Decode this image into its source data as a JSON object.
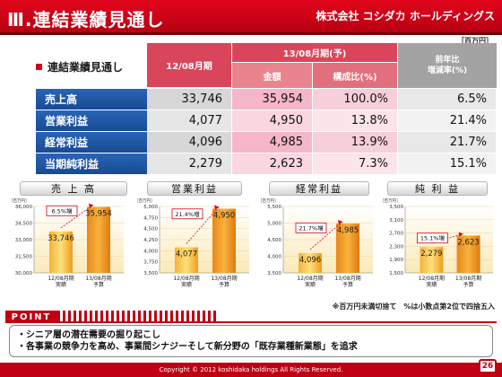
{
  "header": {
    "title": "Ⅲ.連結業績見通し",
    "company": "株式会社 コシダカ ホールディングス"
  },
  "unit_label": "［百万円］",
  "table": {
    "section_label": "連結業績見通し",
    "col_actual": "12/08月期",
    "col_forecast_group": "13/08月期(予)",
    "col_amount": "金額",
    "col_ratio": "構成比(%)",
    "col_yoy": "前年比\n増減率(%)",
    "rows": [
      {
        "label": "売上高",
        "actual": "33,746",
        "forecast": "35,954",
        "ratio": "100.0%",
        "yoy": "6.5%"
      },
      {
        "label": "営業利益",
        "actual": "4,077",
        "forecast": "4,950",
        "ratio": "13.8%",
        "yoy": "21.4%"
      },
      {
        "label": "経常利益",
        "actual": "4,096",
        "forecast": "4,985",
        "ratio": "13.9%",
        "yoy": "21.7%"
      },
      {
        "label": "当期純利益",
        "actual": "2,279",
        "forecast": "2,623",
        "ratio": "7.3%",
        "yoy": "15.1%"
      }
    ]
  },
  "chart_data": [
    {
      "type": "bar",
      "title": "売上高",
      "unit": "［百万円］",
      "categories": [
        "12/08月期\n実績",
        "13/08月期\n予算"
      ],
      "values": [
        33746,
        35954
      ],
      "labels": [
        "33,746",
        "35,954"
      ],
      "growth": "6.5%増",
      "yticks": [
        "30,000",
        "31,500",
        "33,000",
        "34,500",
        "36,000"
      ],
      "ylim": [
        30000,
        36000
      ]
    },
    {
      "type": "bar",
      "title": "営業利益",
      "unit": "［百万円］",
      "categories": [
        "12/08月期\n実績",
        "13/08月期\n予算"
      ],
      "values": [
        4077,
        4950
      ],
      "labels": [
        "4,077",
        "4,950"
      ],
      "growth": "21.4%増",
      "yticks": [
        "3,500",
        "3,750",
        "4,000",
        "4,250",
        "4,500",
        "4,750",
        "5,000"
      ],
      "ylim": [
        3500,
        5000
      ]
    },
    {
      "type": "bar",
      "title": "経常利益",
      "unit": "［百万円］",
      "categories": [
        "12/08月期\n実績",
        "13/08月期\n予算"
      ],
      "values": [
        4096,
        4985
      ],
      "labels": [
        "4,096",
        "4,985"
      ],
      "growth": "21.7%増",
      "yticks": [
        "3,500",
        "4,000",
        "4,500",
        "5,000",
        "5,500"
      ],
      "ylim": [
        3500,
        5500
      ]
    },
    {
      "type": "bar",
      "title": "純利益",
      "unit": "［百万円］",
      "categories": [
        "12/08月期\n実績",
        "13/08月期\n予算"
      ],
      "values": [
        2279,
        2623
      ],
      "labels": [
        "2,279",
        "2,623"
      ],
      "growth": "15.1%増",
      "yticks": [
        "1,500",
        "1,900",
        "2,300",
        "2,700",
        "3,100",
        "3,500"
      ],
      "ylim": [
        1500,
        3500
      ]
    }
  ],
  "chart_titles": [
    "売 上 高",
    "営業利益",
    "経常利益",
    "純 利 益"
  ],
  "note": "※百万円未満切捨て　%は小数点第2位で四捨五入",
  "point": {
    "badge": "POINT",
    "lines": [
      "・シニア層の潜在需要の掘り起こし",
      "・各事業の競争力を高め、事業間シナジーそして新分野の「既存業種新業態」を追求"
    ]
  },
  "footer": {
    "copyright": "Copyright © 2012 koshidaka holdings All Rights Reserved.",
    "page": "26"
  },
  "colors": {
    "brand_red": "#c00012",
    "header_blue": "#1f57a7",
    "bar_orange": "#f39a1e",
    "bar_yellow": "#f7c948"
  }
}
